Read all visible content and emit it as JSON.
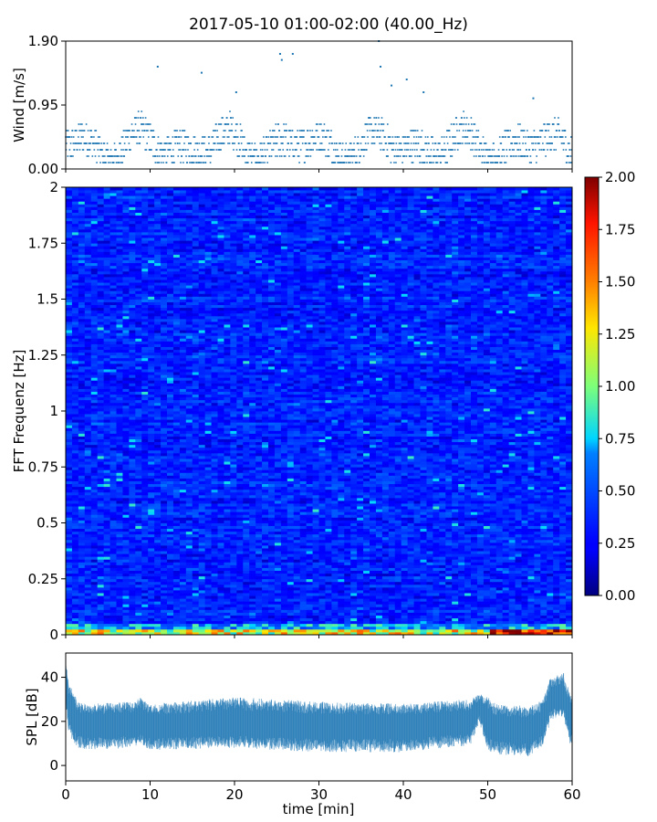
{
  "title": "2017-05-10 01:00-02:00 (40.00_Hz)",
  "chart_data": [
    {
      "id": "wind",
      "type": "scatter",
      "ylabel": "Wind [m/s]",
      "ylim": [
        0,
        1.9
      ],
      "yticks": [
        0.0,
        0.95,
        1.9
      ],
      "ytick_labels": [
        "0.00",
        "0.95",
        "1.90"
      ],
      "xlim": [
        0,
        60
      ],
      "marker_color": "#1f77b4",
      "levels": [
        0.095,
        0.19,
        0.285,
        0.38,
        0.475,
        0.57,
        0.665,
        0.76,
        0.855,
        0.95,
        1.045,
        1.14,
        1.235,
        1.33,
        1.425,
        1.52,
        1.615,
        1.71,
        1.805,
        1.9
      ],
      "peaks": [
        {
          "x": 10.9,
          "y": 1.52
        },
        {
          "x": 16.1,
          "y": 1.43
        },
        {
          "x": 20.2,
          "y": 1.14
        },
        {
          "x": 25.4,
          "y": 1.71
        },
        {
          "x": 25.6,
          "y": 1.62
        },
        {
          "x": 26.9,
          "y": 1.71
        },
        {
          "x": 37.1,
          "y": 1.9
        },
        {
          "x": 37.3,
          "y": 1.52
        },
        {
          "x": 38.6,
          "y": 1.24
        },
        {
          "x": 40.4,
          "y": 1.33
        },
        {
          "x": 42.4,
          "y": 1.14
        },
        {
          "x": 55.4,
          "y": 1.05
        }
      ]
    },
    {
      "id": "spectrogram",
      "type": "heatmap",
      "ylabel": "FFT Frequenz [Hz]",
      "ylim": [
        0,
        2
      ],
      "yticks": [
        0,
        0.25,
        0.5,
        0.75,
        1,
        1.25,
        1.5,
        1.75,
        2
      ],
      "ytick_labels": [
        "0",
        "0.25",
        "0.5",
        "0.75",
        "1",
        "1.25",
        "1.5",
        "1.75",
        "2"
      ],
      "xlim": [
        0,
        60
      ],
      "colormap": "jet",
      "vmin": 0,
      "vmax": 2,
      "typical_value": 0.35,
      "high_rows_near_zero_hz": "0.00-0.05 Hz reaches 1.0-2.0, strongest at 50-60 min",
      "colorbar": {
        "ticks": [
          0.0,
          0.25,
          0.5,
          0.75,
          1.0,
          1.25,
          1.5,
          1.75,
          2.0
        ],
        "tick_labels": [
          "0.00",
          "0.25",
          "0.50",
          "0.75",
          "1.00",
          "1.25",
          "1.50",
          "1.75",
          "2.00"
        ]
      }
    },
    {
      "id": "spl",
      "type": "area",
      "ylabel": "SPL [dB]",
      "xlabel": "time [min]",
      "ylim": [
        -7,
        51
      ],
      "yticks": [
        0,
        20,
        40
      ],
      "ytick_labels": [
        "0",
        "20",
        "40"
      ],
      "xlim": [
        0,
        60
      ],
      "xticks": [
        0,
        10,
        20,
        30,
        40,
        50,
        60
      ],
      "xtick_labels": [
        "0",
        "10",
        "20",
        "30",
        "40",
        "50",
        "60"
      ],
      "color": "#1f77b4",
      "x": [
        0,
        0.3,
        1.5,
        3,
        8,
        8.7,
        10,
        20,
        30,
        40,
        48,
        49,
        50,
        51,
        55,
        56.5,
        57.5,
        59,
        60
      ],
      "center": [
        40,
        27,
        19,
        18,
        19,
        22,
        18,
        19,
        18,
        18,
        20,
        27,
        20,
        17,
        16,
        19,
        30,
        31,
        20
      ],
      "lower": [
        28,
        14,
        8,
        7,
        8,
        10,
        7,
        8,
        6,
        6,
        9,
        20,
        6,
        5,
        4,
        8,
        21,
        21,
        6
      ],
      "upper": [
        48,
        38,
        29,
        28,
        29,
        31,
        28,
        31,
        29,
        28,
        30,
        33,
        31,
        28,
        27,
        30,
        41,
        42,
        30
      ]
    }
  ]
}
